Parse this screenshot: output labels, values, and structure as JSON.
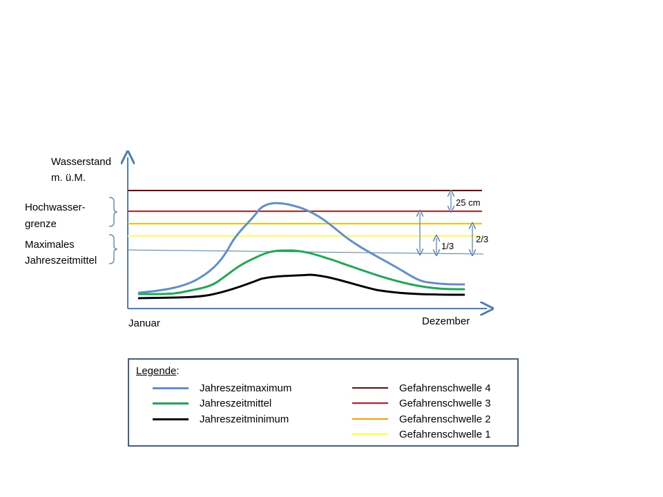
{
  "axes": {
    "y_label_line1": "Wasserstand",
    "y_label_line2": "m. ü.M.",
    "x_start": "Januar",
    "x_end": "Dezember"
  },
  "side_labels": {
    "hochwasser_line1": "Hochwasser-",
    "hochwasser_line2": "grenze",
    "mittel_line1": "Maximales",
    "mittel_line2": "Jahreszeitmittel"
  },
  "annotations": {
    "cm25": "25 cm",
    "third": "1/3",
    "two_thirds": "2/3"
  },
  "legend": {
    "title": "Legende",
    "title_suffix": ":",
    "left": [
      {
        "label": "Jahreszeitmaximum",
        "color": "#5b8fcf"
      },
      {
        "label": "Jahreszeitmittel",
        "color": "#1aab50"
      },
      {
        "label": "Jahreszeitminimum",
        "color": "#000000"
      }
    ],
    "right": [
      {
        "label": "Gefahrenschwelle 4",
        "color": "#8b0000"
      },
      {
        "label": "Gefahrenschwelle 3",
        "color": "#ff0000"
      },
      {
        "label": "Gefahrenschwelle 2",
        "color": "#ff9900"
      },
      {
        "label": "Gefahrenschwelle 1",
        "color": "#ffff33"
      }
    ]
  },
  "colors": {
    "axis": "#4a7ebb",
    "schwelle4": "#8b0000",
    "schwelle3": "#ee1111",
    "schwelle2": "#ffc000",
    "schwelle1": "#ffff55",
    "mittel_line": "#4a7ebb",
    "maximum": "#5b8fcf",
    "mittel": "#1aab50",
    "minimum": "#000000"
  }
}
